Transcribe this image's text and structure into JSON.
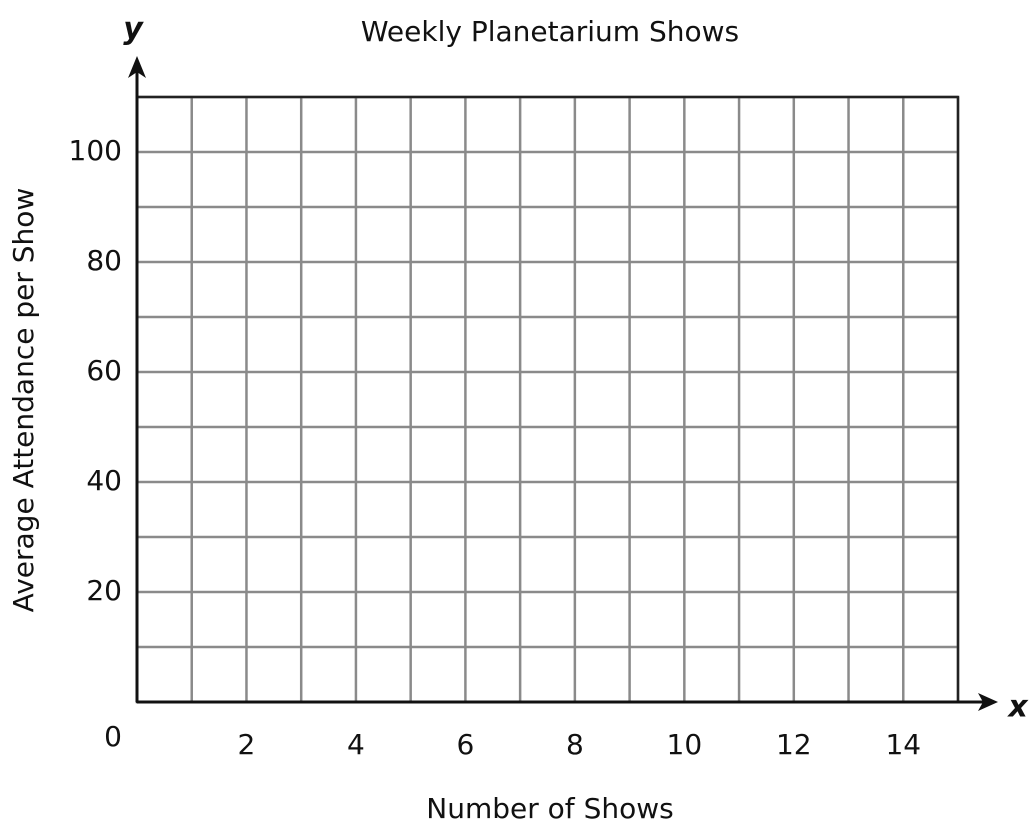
{
  "chart_data": {
    "type": "scatter",
    "title": "Weekly Planetarium Shows",
    "x_label": "Number of Shows",
    "y_label": "Average Attendance per Show",
    "x_axis_letter": "x",
    "y_axis_letter": "y",
    "origin_label": "0",
    "xlim": [
      0,
      15
    ],
    "ylim": [
      0,
      110
    ],
    "xticks": [
      2,
      4,
      6,
      8,
      10,
      12,
      14
    ],
    "yticks": [
      20,
      40,
      60,
      80,
      100
    ],
    "xgridlines": [
      1,
      2,
      3,
      4,
      5,
      6,
      7,
      8,
      9,
      10,
      11,
      12,
      13,
      14,
      15
    ],
    "ygridlines": [
      10,
      20,
      30,
      40,
      50,
      60,
      70,
      80,
      90,
      100,
      110
    ],
    "grid": true,
    "series": []
  }
}
